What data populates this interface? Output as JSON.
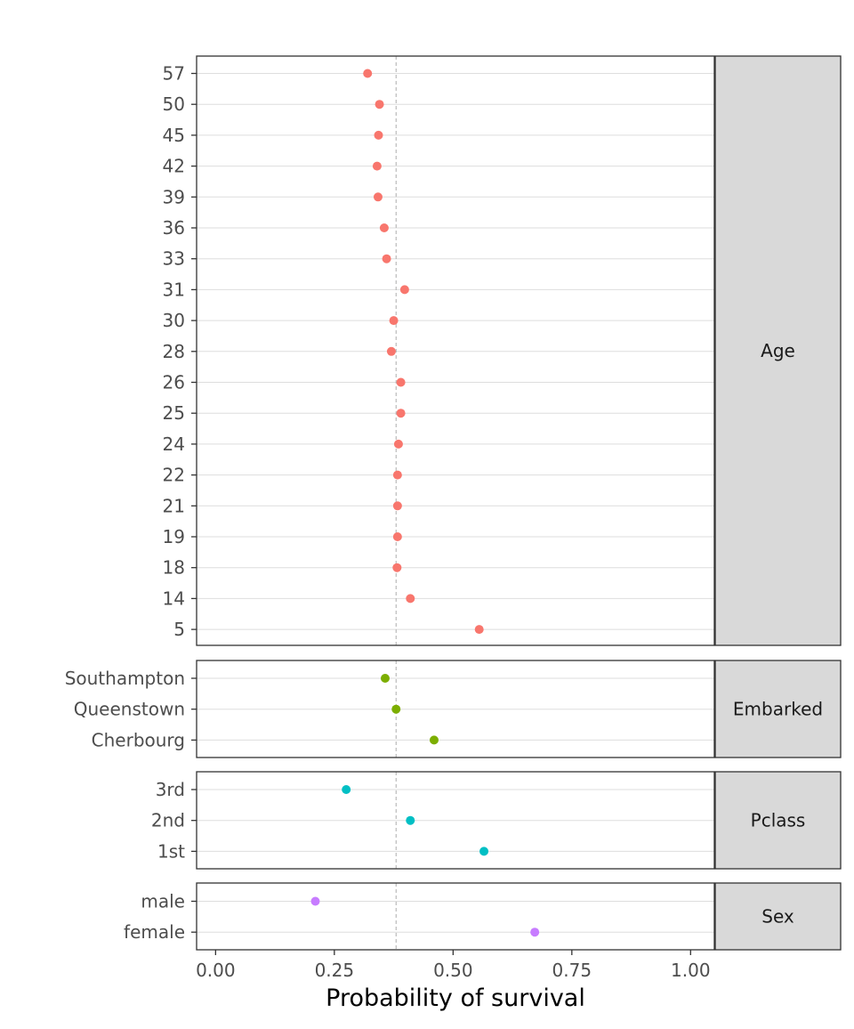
{
  "chart_data": {
    "type": "scatter",
    "xlabel": "Probability of survival",
    "xlim": [
      -0.04,
      1.05
    ],
    "x_ticks": [
      "0.00",
      "0.25",
      "0.50",
      "0.75",
      "1.00"
    ],
    "x_tick_values": [
      0,
      0.25,
      0.5,
      0.75,
      1.0
    ],
    "reference_line": 0.38,
    "grid": true,
    "legend": "none",
    "panels": [
      {
        "name": "Age",
        "color": "#F8766D",
        "categories": [
          "57",
          "50",
          "45",
          "42",
          "39",
          "36",
          "33",
          "31",
          "30",
          "28",
          "26",
          "25",
          "24",
          "22",
          "21",
          "19",
          "18",
          "14",
          "5"
        ],
        "values": [
          0.32,
          0.345,
          0.343,
          0.34,
          0.342,
          0.355,
          0.36,
          0.398,
          0.375,
          0.37,
          0.39,
          0.39,
          0.385,
          0.383,
          0.383,
          0.383,
          0.382,
          0.41,
          0.555
        ]
      },
      {
        "name": "Embarked",
        "color": "#7CAE00",
        "categories": [
          "Southampton",
          "Queenstown",
          "Cherbourg"
        ],
        "values": [
          0.357,
          0.38,
          0.46
        ]
      },
      {
        "name": "Pclass",
        "color": "#00BFC4",
        "categories": [
          "3rd",
          "2nd",
          "1st"
        ],
        "values": [
          0.275,
          0.41,
          0.565
        ]
      },
      {
        "name": "Sex",
        "color": "#C77CFF",
        "categories": [
          "male",
          "female"
        ],
        "values": [
          0.21,
          0.672
        ]
      }
    ]
  }
}
